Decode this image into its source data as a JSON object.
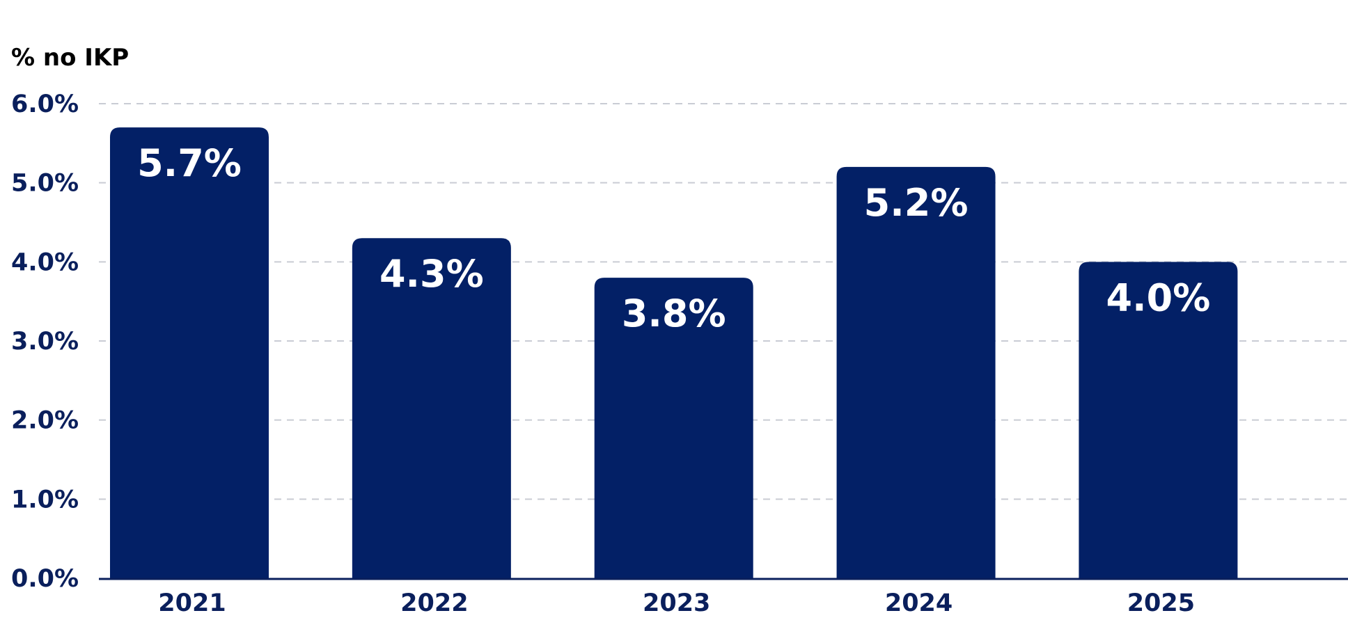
{
  "chart_data": {
    "type": "bar",
    "ylabel": "% no IKP",
    "categories": [
      "2021",
      "2022",
      "2023",
      "2024",
      "2025"
    ],
    "values": [
      5.7,
      4.3,
      3.8,
      5.2,
      4.0
    ],
    "data_labels": [
      "5.7%",
      "4.3%",
      "3.8%",
      "5.2%",
      "4.0%"
    ],
    "ylim": [
      0,
      6
    ],
    "yticks": [
      0,
      1,
      2,
      3,
      4,
      5,
      6
    ],
    "ytick_labels": [
      "0.0%",
      "1.0%",
      "2.0%",
      "3.0%",
      "4.0%",
      "5.0%",
      "6.0%"
    ],
    "grid": true,
    "grid_style": "dashed",
    "legend": "none",
    "colors": {
      "bar": "#032066",
      "text": "#0a1f5c",
      "data_label": "#ffffff",
      "grid": "#c9ccd4",
      "axis": "#0a1f5c"
    }
  }
}
